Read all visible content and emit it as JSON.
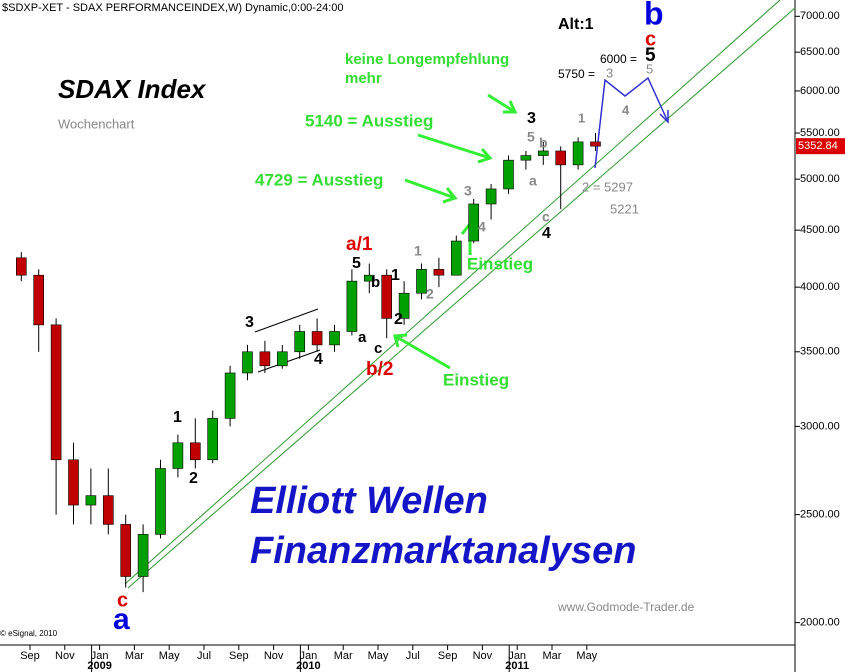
{
  "chart_data": {
    "type": "candlestick",
    "title": "$SDXP-XET - SDAX PERFORMANCEINDEX,W) Dynamic,0:00-24:00",
    "x": [
      "2008-08",
      "2008-09",
      "2008-10",
      "2008-11",
      "2008-12",
      "2009-01",
      "2009-02",
      "2009-03",
      "2009-04",
      "2009-05",
      "2009-06",
      "2009-07",
      "2009-08",
      "2009-09",
      "2009-10",
      "2009-11",
      "2009-12",
      "2010-01",
      "2010-02",
      "2010-03",
      "2010-04",
      "2010-05",
      "2010-06",
      "2010-07",
      "2010-08",
      "2010-09",
      "2010-10",
      "2010-11",
      "2010-12",
      "2011-01",
      "2011-02",
      "2011-03",
      "2011-04",
      "2011-05"
    ],
    "open": [
      4250,
      4100,
      3700,
      2800,
      2550,
      2600,
      2450,
      2200,
      2400,
      2750,
      2900,
      2800,
      3050,
      3350,
      3500,
      3400,
      3500,
      3650,
      3550,
      3650,
      4050,
      4100,
      3750,
      3950,
      4150,
      4100,
      4400,
      4750,
      4900,
      5200,
      5250,
      5300,
      5150,
      5400
    ],
    "high": [
      4300,
      4150,
      3750,
      2900,
      2750,
      2750,
      2500,
      2450,
      2800,
      2950,
      3050,
      3100,
      3400,
      3550,
      3580,
      3550,
      3700,
      3750,
      3700,
      4150,
      4200,
      4150,
      4050,
      4200,
      4250,
      4450,
      4800,
      4950,
      5250,
      5300,
      5400,
      5350,
      5450,
      5500
    ],
    "low": [
      4050,
      3500,
      2500,
      2450,
      2450,
      2400,
      2150,
      2130,
      2380,
      2700,
      2750,
      2780,
      3000,
      3300,
      3350,
      3380,
      3450,
      3500,
      3500,
      3620,
      3950,
      3600,
      3700,
      3900,
      4000,
      4100,
      4380,
      4600,
      4850,
      5100,
      5150,
      4700,
      5100,
      5300
    ],
    "close": [
      4100,
      3700,
      2800,
      2550,
      2600,
      2450,
      2200,
      2400,
      2750,
      2900,
      2800,
      3050,
      3350,
      3500,
      3400,
      3500,
      3650,
      3550,
      3650,
      4050,
      4100,
      3750,
      3950,
      4150,
      4100,
      4400,
      4750,
      4900,
      5200,
      5250,
      5300,
      5150,
      5400,
      5352.84
    ],
    "up_color": "#00a000",
    "down_color": "#c00000",
    "log_scale": true,
    "ylim": [
      1890,
      7240
    ],
    "yticks": [
      {
        "value": 2000,
        "label": "2000.00"
      },
      {
        "value": 2500,
        "label": "2500.00"
      },
      {
        "value": 3000,
        "label": "3000.00"
      },
      {
        "value": 3500,
        "label": "3500.00"
      },
      {
        "value": 4000,
        "label": "4000.00"
      },
      {
        "value": 4500,
        "label": "4500.00"
      },
      {
        "value": 5000,
        "label": "5000.00"
      },
      {
        "value": 5500,
        "label": "5500.00"
      },
      {
        "value": 6000,
        "label": "6000.00"
      },
      {
        "value": 6500,
        "label": "6500.00"
      },
      {
        "value": 7000,
        "label": "7000.00"
      }
    ],
    "xticks": [
      {
        "value": "2008-09",
        "label": "Sep"
      },
      {
        "value": "2008-11",
        "label": "Nov"
      },
      {
        "value": "2009-01",
        "label": "Jan"
      },
      {
        "value": "2009-03",
        "label": "Mar"
      },
      {
        "value": "2009-05",
        "label": "May"
      },
      {
        "value": "2009-07",
        "label": "Jul"
      },
      {
        "value": "2009-09",
        "label": "Sep"
      },
      {
        "value": "2009-11",
        "label": "Nov"
      },
      {
        "value": "2010-01",
        "label": "Jan"
      },
      {
        "value": "2010-03",
        "label": "Mar"
      },
      {
        "value": "2010-05",
        "label": "May"
      },
      {
        "value": "2010-07",
        "label": "Jul"
      },
      {
        "value": "2010-09",
        "label": "Sep"
      },
      {
        "value": "2010-11",
        "label": "Nov"
      },
      {
        "value": "2011-01",
        "label": "Jan"
      },
      {
        "value": "2011-03",
        "label": "Mar"
      },
      {
        "value": "2011-05",
        "label": "May"
      }
    ],
    "year_labels": [
      {
        "value": "2009-01",
        "label": "2009"
      },
      {
        "value": "2010-01",
        "label": "2010"
      },
      {
        "value": "2011-01",
        "label": "2011"
      }
    ],
    "last_value_label": "5352.84",
    "annotations": [
      {
        "text": "Alt:1",
        "color": "#000000"
      },
      {
        "text": "b",
        "color": "#0000dd"
      },
      {
        "text": "c",
        "color": "#dd0000"
      },
      {
        "text": "5",
        "color": "#000000"
      },
      {
        "text": "6000 =",
        "color": "#000000"
      },
      {
        "text": "5750 =",
        "color": "#000000"
      },
      {
        "text": "3",
        "color": "#888888"
      },
      {
        "text": "5",
        "color": "#888888"
      },
      {
        "text": "4",
        "color": "#888888"
      },
      {
        "text": "1",
        "color": "#888888"
      },
      {
        "text": "2 = 5297",
        "color": "#888888"
      },
      {
        "text": "5221",
        "color": "#888888"
      },
      {
        "text": "keine Longempfehlung",
        "color": "#33dd33"
      },
      {
        "text": "mehr",
        "color": "#33dd33"
      },
      {
        "text": "SDAX Index",
        "color": "#000000"
      },
      {
        "text": "Wochenchart",
        "color": "#888888"
      },
      {
        "text": "5140 = Ausstieg",
        "color": "#33dd33"
      },
      {
        "text": "3",
        "color": "#000000"
      },
      {
        "text": "5",
        "color": "#888888"
      },
      {
        "text": "b",
        "color": "#888888"
      },
      {
        "text": "a",
        "color": "#888888"
      },
      {
        "text": "c",
        "color": "#888888"
      },
      {
        "text": "4",
        "color": "#000000"
      },
      {
        "text": "4729 = Ausstieg",
        "color": "#33dd33"
      },
      {
        "text": "3",
        "color": "#888888"
      },
      {
        "text": "4",
        "color": "#888888"
      },
      {
        "text": "Einstieg",
        "color": "#33dd33"
      },
      {
        "text": "a/1",
        "color": "#dd0000"
      },
      {
        "text": "5",
        "color": "#000000"
      },
      {
        "text": "b",
        "color": "#000000"
      },
      {
        "text": "1",
        "color": "#000000"
      },
      {
        "text": "1",
        "color": "#888888"
      },
      {
        "text": "2",
        "color": "#888888"
      },
      {
        "text": "2",
        "color": "#000000"
      },
      {
        "text": "a",
        "color": "#000000"
      },
      {
        "text": "c",
        "color": "#000000"
      },
      {
        "text": "b/2",
        "color": "#dd0000"
      },
      {
        "text": "Einstieg",
        "color": "#33dd33"
      },
      {
        "text": "3",
        "color": "#000000"
      },
      {
        "text": "4",
        "color": "#000000"
      },
      {
        "text": "1",
        "color": "#000000"
      },
      {
        "text": "2",
        "color": "#000000"
      },
      {
        "text": "Elliott Wellen",
        "color": "#1515c8"
      },
      {
        "text": "Finanzmarktanalysen",
        "color": "#1515c8"
      },
      {
        "text": "c",
        "color": "#dd0000"
      },
      {
        "text": "a",
        "color": "#0000dd"
      },
      {
        "text": "www.Godmode-Trader.de",
        "color": "#888888"
      },
      {
        "text": "© eSignal, 2010",
        "color": "#000000"
      }
    ]
  }
}
